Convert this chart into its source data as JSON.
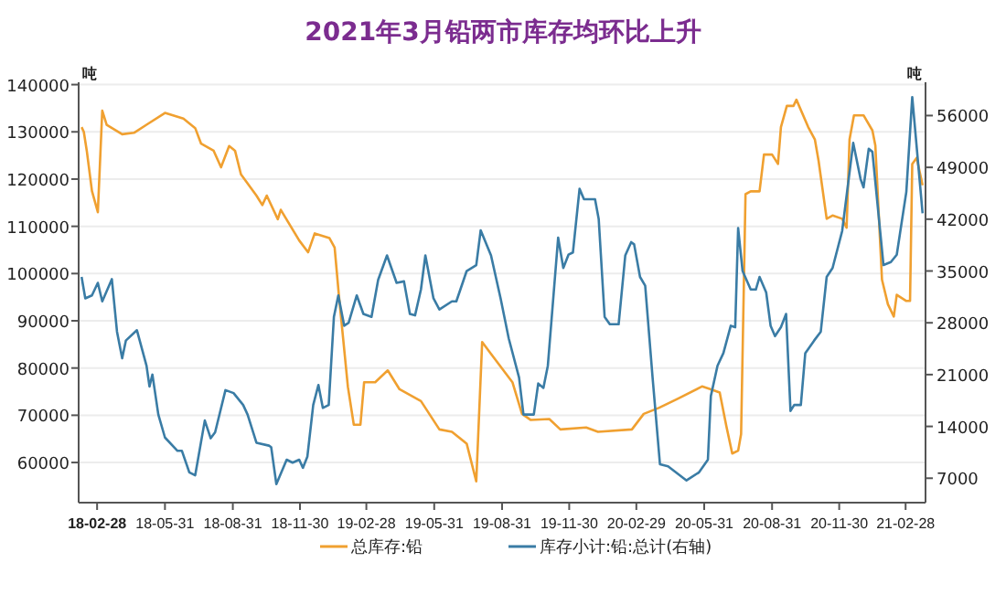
{
  "chart_data": {
    "type": "line",
    "title": "2021年3月铅两市库存均环比上升",
    "ylabel": "吨",
    "y2label": "吨",
    "xlim": [
      "2018-02-03",
      "2021-03-27"
    ],
    "xticks": [
      {
        "value": "2018-02-28",
        "label": "18-02-28"
      },
      {
        "value": "2018-05-31",
        "label": "18-05-31"
      },
      {
        "value": "2018-08-31",
        "label": "18-08-31"
      },
      {
        "value": "2018-11-30",
        "label": "18-11-30"
      },
      {
        "value": "2019-02-28",
        "label": "19-02-28"
      },
      {
        "value": "2019-05-31",
        "label": "19-05-31"
      },
      {
        "value": "2019-08-31",
        "label": "19-08-31"
      },
      {
        "value": "2019-11-30",
        "label": "19-11-30"
      },
      {
        "value": "2020-02-29",
        "label": "20-02-29"
      },
      {
        "value": "2020-05-31",
        "label": "20-05-31"
      },
      {
        "value": "2020-08-31",
        "label": "20-08-31"
      },
      {
        "value": "2020-11-30",
        "label": "20-11-30"
      },
      {
        "value": "2021-02-28",
        "label": "21-02-28"
      }
    ],
    "ylim": [
      51500,
      140500
    ],
    "yticks": [
      60000,
      70000,
      80000,
      90000,
      100000,
      110000,
      120000,
      130000,
      140000
    ],
    "y2lim": [
      3700,
      60500
    ],
    "y2ticks": [
      7000,
      14000,
      21000,
      28000,
      35000,
      42000,
      49000,
      56000
    ],
    "grid": "y",
    "legend": "bottom",
    "marker": "none",
    "line_style": "solid",
    "series": [
      {
        "name": "总库存:铅",
        "color": "#f0a030",
        "x": [
          "2018-02-07",
          "2018-02-10",
          "2018-02-14",
          "2018-02-21",
          "2018-03-01",
          "2018-03-07",
          "2018-03-13",
          "2018-04-03",
          "2018-04-19",
          "2018-05-06",
          "2018-05-31",
          "2018-06-25",
          "2018-07-11",
          "2018-07-19",
          "2018-08-05",
          "2018-08-15",
          "2018-08-26",
          "2018-09-03",
          "2018-09-11",
          "2018-10-02",
          "2018-10-10",
          "2018-10-16",
          "2018-10-31",
          "2018-11-04",
          "2018-11-29",
          "2018-12-11",
          "2018-12-20",
          "2019-01-09",
          "2019-01-16",
          "2019-01-22",
          "2019-02-03",
          "2019-02-11",
          "2019-02-20",
          "2019-02-25",
          "2019-03-12",
          "2019-03-29",
          "2019-04-14",
          "2019-05-13",
          "2019-06-07",
          "2019-06-24",
          "2019-07-14",
          "2019-07-27",
          "2019-08-04",
          "2019-08-16",
          "2019-09-14",
          "2019-09-27",
          "2019-10-09",
          "2019-11-03",
          "2019-11-18",
          "2019-12-23",
          "2020-01-08",
          "2020-02-23",
          "2020-03-10",
          "2020-03-31",
          "2020-04-25",
          "2020-05-28",
          "2020-06-09",
          "2020-06-21",
          "2020-06-30",
          "2020-07-08",
          "2020-07-16",
          "2020-07-20",
          "2020-07-26",
          "2020-08-02",
          "2020-08-14",
          "2020-08-20",
          "2020-08-31",
          "2020-09-08",
          "2020-09-12",
          "2020-09-20",
          "2020-09-29",
          "2020-10-03",
          "2020-10-19",
          "2020-10-28",
          "2020-11-02",
          "2020-11-13",
          "2020-11-21",
          "2020-12-04",
          "2020-12-10",
          "2020-12-14",
          "2020-12-20",
          "2021-01-02",
          "2021-01-14",
          "2021-01-18",
          "2021-01-27",
          "2021-02-04",
          "2021-02-12",
          "2021-02-16",
          "2021-03-01",
          "2021-03-06",
          "2021-03-09",
          "2021-03-15",
          "2021-03-23"
        ],
        "values": [
          131000,
          130000,
          126000,
          117500,
          113000,
          134500,
          131500,
          129500,
          129800,
          131500,
          134000,
          132800,
          130800,
          127500,
          126000,
          122500,
          127000,
          126000,
          121000,
          116500,
          114500,
          116500,
          111500,
          113500,
          107000,
          104500,
          108500,
          107500,
          105500,
          95000,
          76000,
          68000,
          68000,
          77000,
          77000,
          79500,
          75500,
          73000,
          67000,
          66500,
          64000,
          56000,
          85500,
          83000,
          77000,
          70300,
          69000,
          69200,
          67000,
          67400,
          66500,
          67000,
          70300,
          71600,
          73500,
          76100,
          75500,
          74800,
          67700,
          61900,
          62500,
          66000,
          116800,
          117400,
          117400,
          125200,
          125200,
          123200,
          131000,
          135500,
          135500,
          136800,
          131000,
          128400,
          123900,
          111600,
          112300,
          111600,
          109700,
          128400,
          133500,
          133500,
          130300,
          127100,
          98700,
          93500,
          90900,
          95500,
          94200,
          94200,
          123200,
          124500,
          118700
        ]
      },
      {
        "name": "库存小计:铅:总计(右轴)",
        "color": "#3a7ca5",
        "axis": "y2",
        "x": [
          "2018-02-07",
          "2018-02-12",
          "2018-02-21",
          "2018-03-01",
          "2018-03-07",
          "2018-03-20",
          "2018-03-27",
          "2018-04-03",
          "2018-04-08",
          "2018-04-23",
          "2018-05-06",
          "2018-05-10",
          "2018-05-14",
          "2018-05-22",
          "2018-05-31",
          "2018-06-17",
          "2018-06-23",
          "2018-07-03",
          "2018-07-11",
          "2018-07-24",
          "2018-08-01",
          "2018-08-07",
          "2018-08-21",
          "2018-09-01",
          "2018-09-14",
          "2018-09-20",
          "2018-10-02",
          "2018-10-19",
          "2018-10-22",
          "2018-10-29",
          "2018-11-12",
          "2018-11-20",
          "2018-11-29",
          "2018-12-04",
          "2018-12-10",
          "2018-12-18",
          "2018-12-25",
          "2018-12-31",
          "2019-01-08",
          "2019-01-15",
          "2019-01-21",
          "2019-01-29",
          "2019-02-04",
          "2019-02-15",
          "2019-02-24",
          "2019-03-07",
          "2019-03-16",
          "2019-03-28",
          "2019-04-10",
          "2019-04-20",
          "2019-04-28",
          "2019-05-05",
          "2019-05-13",
          "2019-05-19",
          "2019-05-30",
          "2019-06-07",
          "2019-06-24",
          "2019-06-30",
          "2019-07-14",
          "2019-07-27",
          "2019-08-02",
          "2019-08-16",
          "2019-08-29",
          "2019-09-09",
          "2019-09-23",
          "2019-09-29",
          "2019-10-13",
          "2019-10-19",
          "2019-10-26",
          "2019-11-01",
          "2019-11-15",
          "2019-11-22",
          "2019-11-29",
          "2019-12-05",
          "2019-12-14",
          "2019-12-20",
          "2020-01-04",
          "2020-01-09",
          "2020-01-17",
          "2020-01-24",
          "2020-02-05",
          "2020-02-14",
          "2020-02-22",
          "2020-02-26",
          "2020-03-05",
          "2020-03-12",
          "2020-03-22",
          "2020-04-01",
          "2020-04-12",
          "2020-05-07",
          "2020-05-24",
          "2020-06-05",
          "2020-06-09",
          "2020-06-18",
          "2020-06-26",
          "2020-07-06",
          "2020-07-12",
          "2020-07-16",
          "2020-07-22",
          "2020-08-02",
          "2020-08-09",
          "2020-08-14",
          "2020-08-23",
          "2020-08-29",
          "2020-09-04",
          "2020-09-12",
          "2020-09-19",
          "2020-09-25",
          "2020-09-30",
          "2020-10-09",
          "2020-10-15",
          "2020-10-27",
          "2020-11-05",
          "2020-11-13",
          "2020-11-21",
          "2020-12-04",
          "2020-12-19",
          "2020-12-29",
          "2021-01-02",
          "2021-01-09",
          "2021-01-14",
          "2021-01-29",
          "2021-02-08",
          "2021-02-16",
          "2021-03-01",
          "2021-03-09",
          "2021-03-23"
        ],
        "values": [
          34200,
          31300,
          31700,
          33400,
          30900,
          33900,
          26800,
          23200,
          25600,
          27000,
          22200,
          19400,
          21000,
          15600,
          12500,
          10700,
          10700,
          7800,
          7400,
          14800,
          12400,
          13200,
          18900,
          18500,
          16900,
          15600,
          11800,
          11400,
          11200,
          6200,
          9500,
          9100,
          9500,
          8400,
          9900,
          16900,
          19600,
          16500,
          16900,
          28800,
          31700,
          27600,
          28000,
          31700,
          29200,
          28800,
          33800,
          37100,
          33400,
          33600,
          29200,
          29000,
          32500,
          37100,
          31300,
          29800,
          30900,
          30900,
          35000,
          35800,
          40500,
          37100,
          31300,
          25900,
          20600,
          15600,
          15600,
          19800,
          19200,
          22200,
          39500,
          35400,
          37200,
          37500,
          46100,
          44700,
          44700,
          42000,
          28800,
          27800,
          27800,
          37100,
          38900,
          38600,
          34200,
          33000,
          20600,
          8900,
          8600,
          6700,
          7800,
          9500,
          18100,
          22200,
          23900,
          27600,
          27400,
          40800,
          35000,
          32500,
          32500,
          34200,
          32100,
          27600,
          26200,
          27400,
          29200,
          16100,
          16900,
          16900,
          23900,
          25600,
          26800,
          34200,
          35400,
          40400,
          52300,
          47400,
          46300,
          51500,
          51100,
          35800,
          36200,
          37200,
          45700,
          58500,
          42800
        ]
      }
    ]
  }
}
